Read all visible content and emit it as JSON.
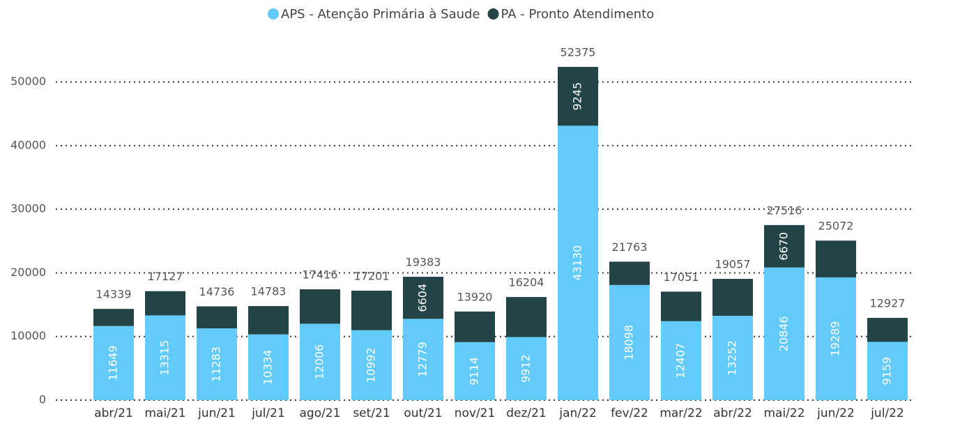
{
  "chart_data": {
    "type": "stacked-bar",
    "categories": [
      "abr/21",
      "mai/21",
      "jun/21",
      "jul/21",
      "ago/21",
      "set/21",
      "out/21",
      "nov/21",
      "dez/21",
      "jan/22",
      "fev/22",
      "mar/22",
      "abr/22",
      "mai/22",
      "jun/22",
      "jul/22"
    ],
    "series": [
      {
        "name": "APS - Atenção Primária à Saude",
        "color": "#63cbf9",
        "values": [
          11649,
          13315,
          11283,
          10334,
          12006,
          10992,
          12779,
          9114,
          9912,
          43130,
          18098,
          12407,
          13252,
          20846,
          19289,
          9159
        ]
      },
      {
        "name": "PA - Pronto Atendimento",
        "color": "#234447",
        "values": [
          2690,
          3812,
          3453,
          4449,
          5410,
          6209,
          6604,
          4806,
          6292,
          9245,
          3665,
          4644,
          5805,
          6670,
          5783,
          3768
        ],
        "value_labels": [
          null,
          null,
          null,
          null,
          null,
          null,
          "6604",
          null,
          null,
          "9245",
          null,
          null,
          null,
          "6670",
          null,
          null
        ]
      }
    ],
    "totals": [
      14339,
      17127,
      14736,
      14783,
      17416,
      17201,
      19383,
      13920,
      16204,
      52375,
      21763,
      17051,
      19057,
      27516,
      25072,
      12927
    ],
    "ylim": [
      0,
      55000
    ],
    "yticks": [
      0,
      10000,
      20000,
      30000,
      40000,
      50000
    ],
    "grid": true,
    "legend": "top"
  }
}
